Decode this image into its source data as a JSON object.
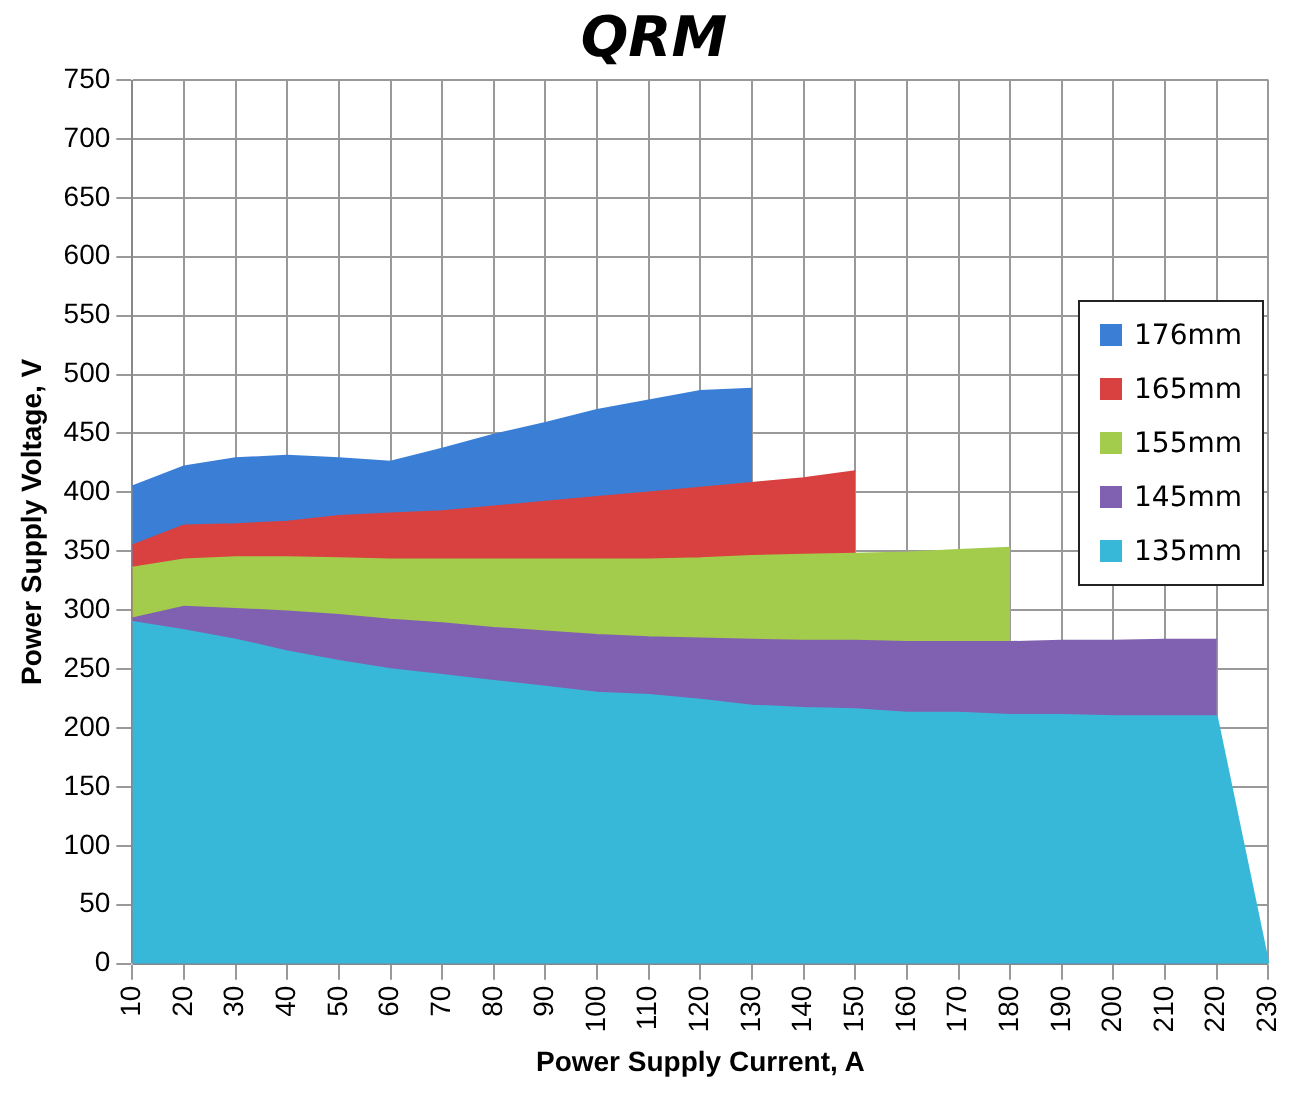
{
  "chart_data": {
    "type": "area",
    "title": "QRM",
    "xlabel": "Power Supply Current, A",
    "ylabel": "Power Supply Voltage, V",
    "categories": [
      "10",
      "20",
      "30",
      "40",
      "50",
      "60",
      "70",
      "80",
      "90",
      "100",
      "110",
      "120",
      "130",
      "140",
      "150",
      "160",
      "170",
      "180",
      "190",
      "200",
      "210",
      "220",
      "230"
    ],
    "series": [
      {
        "name": "176mm",
        "color": "#3a7fd5",
        "values": [
          405,
          422,
          429,
          431,
          429,
          426,
          437,
          449,
          459,
          470,
          478,
          486,
          488,
          null,
          null,
          null,
          null,
          null,
          null,
          null,
          null,
          null,
          null
        ]
      },
      {
        "name": "165mm",
        "color": "#d94040",
        "values": [
          355,
          372,
          373,
          375,
          380,
          382,
          384,
          388,
          392,
          396,
          400,
          404,
          408,
          412,
          418,
          null,
          null,
          null,
          null,
          null,
          null,
          null,
          null
        ]
      },
      {
        "name": "155mm",
        "color": "#a4cc4c",
        "values": [
          336,
          343,
          345,
          345,
          344,
          343,
          343,
          343,
          343,
          343,
          343,
          344,
          346,
          347,
          348,
          349,
          351,
          353,
          null,
          null,
          null,
          null,
          null
        ]
      },
      {
        "name": "145mm",
        "color": "#8060b0",
        "values": [
          293,
          303,
          301,
          299,
          296,
          292,
          289,
          285,
          282,
          279,
          277,
          276,
          275,
          274,
          274,
          273,
          273,
          273,
          274,
          274,
          275,
          275,
          null
        ]
      },
      {
        "name": "135mm",
        "color": "#38b8d8",
        "values": [
          290,
          283,
          275,
          265,
          257,
          250,
          245,
          240,
          235,
          230,
          228,
          224,
          219,
          217,
          216,
          213,
          213,
          211,
          211,
          210,
          210,
          210,
          0
        ]
      }
    ],
    "ylim": [
      0,
      750
    ],
    "yticks": [
      0,
      50,
      100,
      150,
      200,
      250,
      300,
      350,
      400,
      450,
      500,
      550,
      600,
      650,
      700,
      750
    ],
    "grid": true,
    "legend": "right"
  }
}
